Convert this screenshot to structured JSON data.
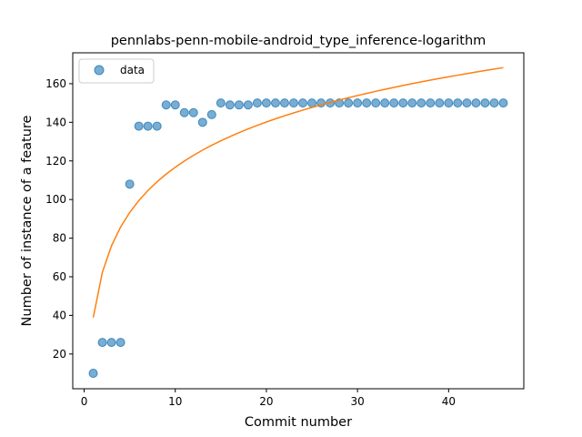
{
  "chart_data": {
    "type": "scatter",
    "title": "pennlabs-penn-mobile-android_type_inference-logarithm",
    "xlabel": "Commit number",
    "ylabel": "Number of instance of a feature",
    "xlim": [
      -1.25,
      48.25
    ],
    "ylim": [
      2,
      176
    ],
    "xticks": [
      0,
      10,
      20,
      30,
      40
    ],
    "yticks": [
      20,
      40,
      60,
      80,
      100,
      120,
      140,
      160
    ],
    "grid": false,
    "legend_position": "top-left",
    "series": [
      {
        "name": "data",
        "kind": "scatter",
        "color": "#1f77b4",
        "x": [
          1,
          2,
          3,
          4,
          5,
          6,
          7,
          8,
          9,
          10,
          11,
          12,
          13,
          14,
          15,
          16,
          17,
          18,
          19,
          20,
          21,
          22,
          23,
          24,
          25,
          26,
          27,
          28,
          29,
          30,
          31,
          32,
          33,
          34,
          35,
          36,
          37,
          38,
          39,
          40,
          41,
          42,
          43,
          44,
          45,
          46
        ],
        "y": [
          10,
          26,
          26,
          26,
          108,
          138,
          138,
          138,
          149,
          149,
          145,
          145,
          140,
          144,
          150,
          149,
          149,
          149,
          150,
          150,
          150,
          150,
          150,
          150,
          150,
          150,
          150,
          150,
          150,
          150,
          150,
          150,
          150,
          150,
          150,
          150,
          150,
          150,
          150,
          150,
          150,
          150,
          150,
          150,
          150,
          150
        ]
      },
      {
        "name": "",
        "kind": "line",
        "color": "#ff7f0e",
        "model": "logarithm",
        "a": 38.9,
        "b": 33.8,
        "x_range": [
          1,
          46
        ]
      }
    ]
  }
}
